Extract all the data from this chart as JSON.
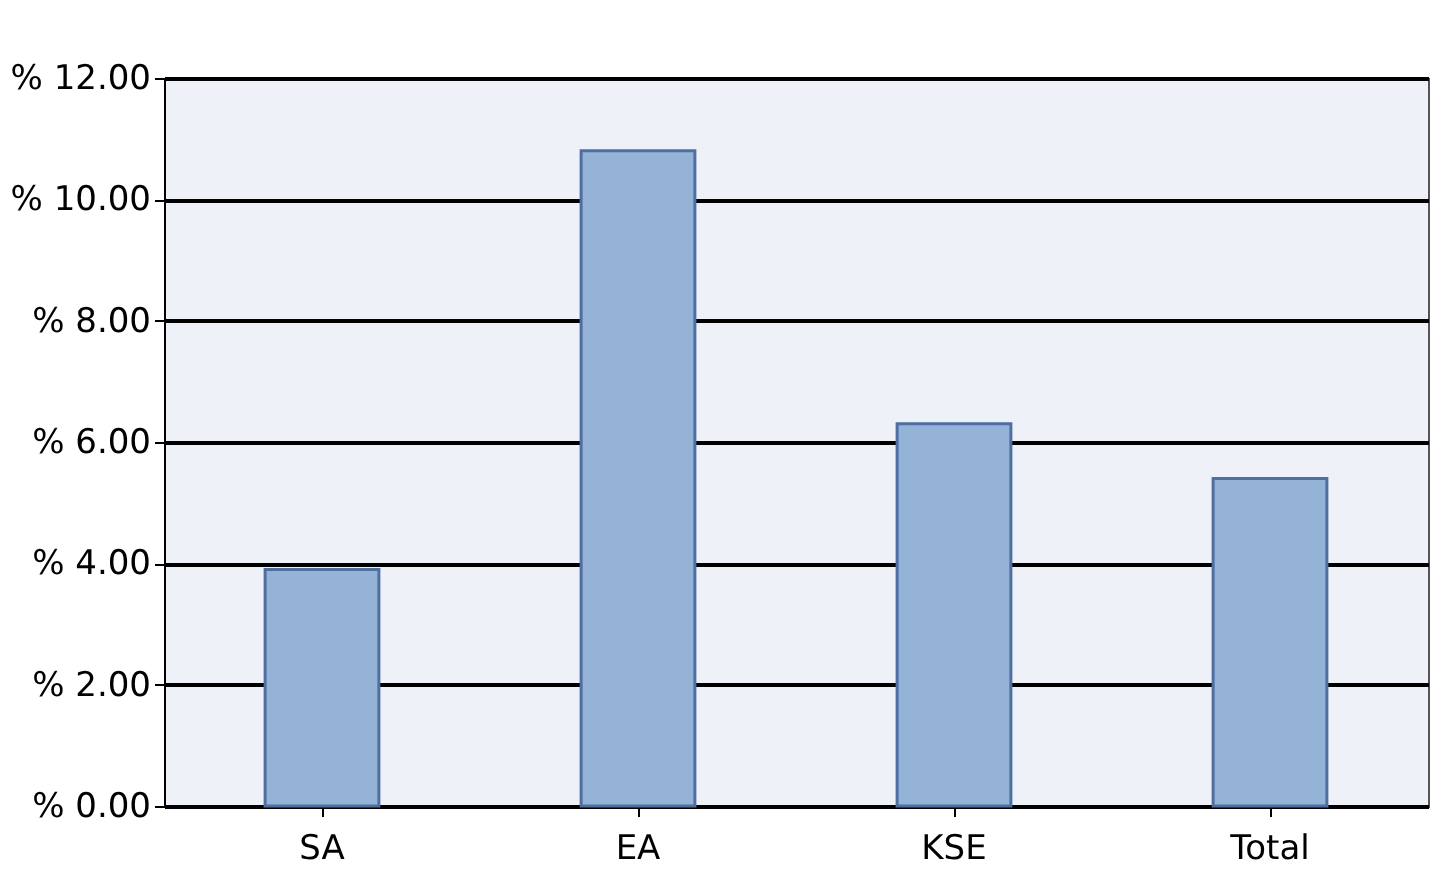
{
  "chart_data": {
    "type": "bar",
    "categories": [
      "SA",
      "EA",
      "KSE",
      "Total"
    ],
    "values": [
      3.9,
      10.8,
      6.3,
      5.4
    ],
    "color": "#95b3d7",
    "ylim": [
      0,
      12
    ],
    "yticks": [
      {
        "value": 0,
        "label": "% 0.00"
      },
      {
        "value": 2,
        "label": "% 2.00"
      },
      {
        "value": 4,
        "label": "% 4.00"
      },
      {
        "value": 6,
        "label": "% 6.00"
      },
      {
        "value": 8,
        "label": "% 8.00"
      },
      {
        "value": 10,
        "label": "% 10.00"
      },
      {
        "value": 12,
        "label": "% 12.00"
      }
    ],
    "grid": "y"
  }
}
